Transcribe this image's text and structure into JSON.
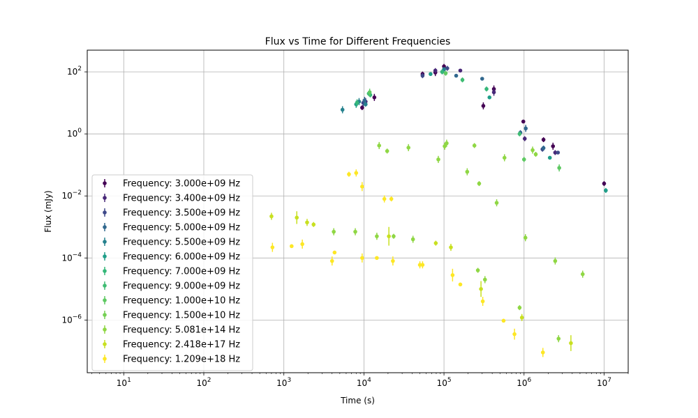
{
  "chart_data": {
    "type": "scatter",
    "title": "Flux vs Time for Different Frequencies",
    "xlabel": "Time (s)",
    "ylabel": "Flux (mJy)",
    "xscale": "log",
    "yscale": "log",
    "xlim": [
      3.5,
      20000000
    ],
    "ylim": [
      2e-08,
      500
    ],
    "grid": true,
    "legend_position": "lower-left",
    "x_ticks": [
      {
        "value": 10,
        "base": "10",
        "exp": "1"
      },
      {
        "value": 100,
        "base": "10",
        "exp": "2"
      },
      {
        "value": 1000,
        "base": "10",
        "exp": "3"
      },
      {
        "value": 10000,
        "base": "10",
        "exp": "4"
      },
      {
        "value": 100000,
        "base": "10",
        "exp": "5"
      },
      {
        "value": 1000000,
        "base": "10",
        "exp": "6"
      },
      {
        "value": 10000000,
        "base": "10",
        "exp": "7"
      }
    ],
    "y_ticks": [
      {
        "value": 1e-06,
        "base": "10",
        "exp": "−6"
      },
      {
        "value": 0.0001,
        "base": "10",
        "exp": "−4"
      },
      {
        "value": 0.01,
        "base": "10",
        "exp": "−2"
      },
      {
        "value": 1,
        "base": "10",
        "exp": "0"
      },
      {
        "value": 100,
        "base": "10",
        "exp": "2"
      }
    ],
    "series": [
      {
        "name": "Frequency: 3.000e+09 Hz",
        "color": "#440154",
        "points": [
          [
            9500,
            7,
            1.2
          ],
          [
            13500,
            15,
            1.3
          ],
          [
            54000,
            85,
            1.2
          ],
          [
            78000,
            95,
            1.3
          ],
          [
            100000,
            150,
            1.2
          ],
          [
            310000,
            8,
            1.3
          ],
          [
            420000,
            28,
            1.3
          ],
          [
            980000,
            2.5,
            1.1
          ],
          [
            1750000,
            0.65,
            1.2
          ],
          [
            2300000,
            0.4,
            1.3
          ],
          [
            10000000,
            0.025,
            1.2
          ]
        ]
      },
      {
        "name": "Frequency: 3.400e+09 Hz",
        "color": "#482878",
        "points": [
          [
            10500,
            11,
            1.3
          ],
          [
            78000,
            110,
            1.2
          ],
          [
            160000,
            110,
            1.1
          ],
          [
            420000,
            22,
            1.3
          ],
          [
            1020000,
            0.7,
            1.2
          ],
          [
            2450000,
            0.25,
            1.2
          ]
        ]
      },
      {
        "name": "Frequency: 3.500e+09 Hz",
        "color": "#3e4989",
        "points": [
          [
            9800,
            10,
            1.3
          ],
          [
            54000,
            75,
            1.2
          ],
          [
            110000,
            130,
            1.2
          ],
          [
            1700000,
            0.32,
            1.2
          ],
          [
            2650000,
            0.25,
            1.1
          ]
        ]
      },
      {
        "name": "Frequency: 5.000e+09 Hz",
        "color": "#31688e",
        "points": [
          [
            10200,
            12,
            1.3
          ],
          [
            95000,
            100,
            1.2
          ],
          [
            142000,
            75,
            1.1
          ],
          [
            300000,
            60,
            1.1
          ],
          [
            900000,
            1.1,
            1.2
          ],
          [
            1050000,
            1.5,
            1.3
          ],
          [
            1750000,
            0.35,
            1.2
          ]
        ]
      },
      {
        "name": "Frequency: 5.500e+09 Hz",
        "color": "#26828e",
        "points": [
          [
            5400,
            6,
            1.3
          ],
          [
            8700,
            11,
            1.3
          ],
          [
            10500,
            9,
            1.2
          ],
          [
            100000,
            120,
            1.2
          ]
        ]
      },
      {
        "name": "Frequency: 6.000e+09 Hz",
        "color": "#1f9e89",
        "points": [
          [
            8000,
            9,
            1.3
          ],
          [
            68000,
            85,
            1.1
          ],
          [
            370000,
            15,
            1.1
          ],
          [
            2100000,
            0.17,
            1.1
          ],
          [
            10500000,
            0.015,
            1.2
          ]
        ]
      },
      {
        "name": "Frequency: 7.000e+09 Hz",
        "color": "#35b779",
        "points": [
          [
            12000,
            18,
            1.2
          ],
          [
            8200,
            10,
            1.3
          ],
          [
            95000,
            100,
            1.2
          ],
          [
            340000,
            28,
            1.2
          ]
        ]
      },
      {
        "name": "Frequency: 9.000e+09 Hz",
        "color": "#3fbc73",
        "points": [
          [
            11500,
            20,
            1.2
          ],
          [
            170000,
            55,
            1.2
          ],
          [
            880000,
            1.0,
            1.2
          ]
        ]
      },
      {
        "name": "Frequency: 1.000e+10 Hz",
        "color": "#5ec962",
        "points": [
          [
            11800,
            22,
            1.3
          ],
          [
            105000,
            90,
            1.2
          ],
          [
            1000000,
            0.15,
            1.2
          ],
          [
            2750000,
            0.08,
            1.3
          ]
        ]
      },
      {
        "name": "Frequency: 1.500e+10 Hz",
        "color": "#75d054",
        "points": []
      },
      {
        "name": "Frequency: 5.081e+14 Hz",
        "color": "#8fd744",
        "points": [
          [
            102000,
            0.4,
            1.3
          ],
          [
            108000,
            0.5,
            1.3
          ],
          [
            240000,
            0.42,
            1.2
          ],
          [
            570000,
            0.17,
            1.3
          ],
          [
            1280000,
            0.3,
            1.3
          ],
          [
            1400000,
            0.22,
            1.2
          ],
          [
            15500,
            0.42,
            1.3
          ],
          [
            19500,
            0.28,
            1.2
          ],
          [
            36000,
            0.36,
            1.3
          ],
          [
            85000,
            0.15,
            1.3
          ],
          [
            195000,
            0.06,
            1.3
          ],
          [
            275000,
            0.025,
            1.2
          ],
          [
            455000,
            0.006,
            1.3
          ],
          [
            4200,
            0.0007,
            1.3
          ],
          [
            7800,
            0.0007,
            1.3
          ],
          [
            14500,
            0.0005,
            1.3
          ],
          [
            23500,
            0.0005,
            1.2
          ],
          [
            41000,
            0.0004,
            1.3
          ],
          [
            1040000,
            0.00045,
            1.3
          ],
          [
            2450000,
            8e-05,
            1.3
          ],
          [
            5400000,
            3e-05,
            1.3
          ],
          [
            265000,
            4e-05,
            1.2
          ],
          [
            325000,
            2e-05,
            1.3
          ],
          [
            880000,
            2.5e-06,
            1.2
          ],
          [
            2700000,
            2.5e-07,
            1.3
          ]
        ]
      },
      {
        "name": "Frequency: 2.418e+17 Hz",
        "color": "#c8e020",
        "points": [
          [
            700,
            0.0022,
            1.3
          ],
          [
            1450,
            0.002,
            1.6
          ],
          [
            1950,
            0.0014,
            1.3
          ],
          [
            2350,
            0.0012,
            1.2
          ],
          [
            20500,
            0.0005,
            2.0
          ],
          [
            79000,
            0.0003,
            1.2
          ],
          [
            122000,
            0.00022,
            1.3
          ],
          [
            290000,
            1e-05,
            1.8
          ],
          [
            940000,
            1.2e-06,
            1.3
          ],
          [
            3850000,
            1.8e-07,
            1.8
          ]
        ]
      },
      {
        "name": "Frequency: 1.209e+18 Hz",
        "color": "#fde725",
        "points": [
          [
            6500,
            0.05,
            1.2
          ],
          [
            8000,
            0.055,
            1.3
          ],
          [
            9500,
            0.02,
            1.4
          ],
          [
            18000,
            0.008,
            1.3
          ],
          [
            22000,
            0.008,
            1.2
          ],
          [
            720,
            0.00022,
            1.4
          ],
          [
            1250,
            0.00024,
            1.1
          ],
          [
            1700,
            0.00028,
            1.4
          ],
          [
            4000,
            8e-05,
            1.4
          ],
          [
            4300,
            0.00015,
            1.1
          ],
          [
            9500,
            0.0001,
            1.4
          ],
          [
            14500,
            0.0001,
            1.1
          ],
          [
            23000,
            8e-05,
            1.4
          ],
          [
            50000,
            6e-05,
            1.3
          ],
          [
            54000,
            6e-05,
            1.3
          ],
          [
            128000,
            2.8e-05,
            1.6
          ],
          [
            160000,
            1.4e-05,
            1.1
          ],
          [
            305000,
            4e-06,
            1.4
          ],
          [
            555000,
            9.5e-07,
            1.1
          ],
          [
            760000,
            3.5e-07,
            1.5
          ],
          [
            1720000,
            9e-08,
            1.4
          ]
        ]
      }
    ]
  }
}
